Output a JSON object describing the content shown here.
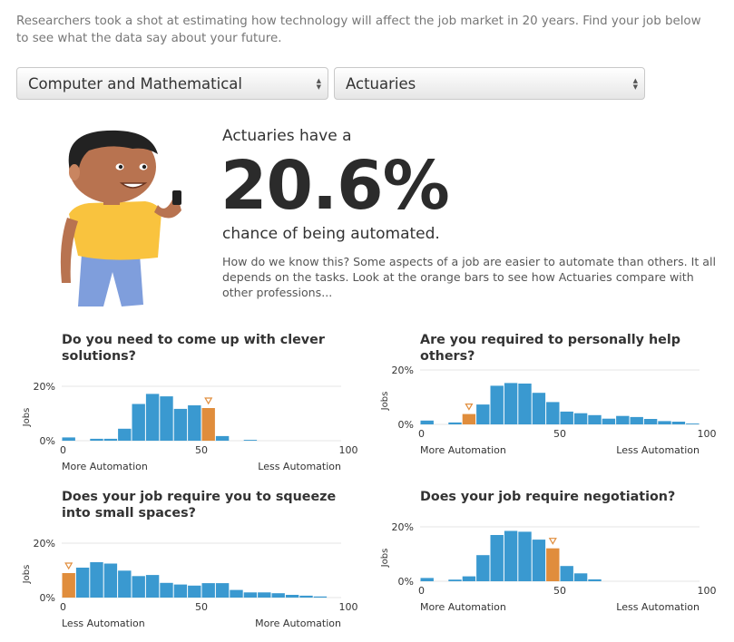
{
  "intro": "Researchers took a shot at estimating how technology will affect the job market in 20 years. Find your job below to see what the data say about your future.",
  "selects": {
    "category": "Computer and Mathematical",
    "job": "Actuaries"
  },
  "result": {
    "lead": "Actuaries have a",
    "probability": "20.6%",
    "tail": "chance of being automated.",
    "explanation": "How do we know this? Some aspects of a job are easier to automate than others. It all depends on the tasks. Look at the orange bars to see how Actuaries compare with other professions..."
  },
  "colors": {
    "bar": "#3a99d0",
    "highlight": "#e08d3c",
    "marker": "#e08d3c"
  },
  "charts": [
    {
      "question": "Do you need to come up with clever solutions?",
      "ylabel": "Jobs",
      "y_ticks": [
        "20%",
        "0%"
      ],
      "x_ticks": [
        "0",
        "50",
        "100"
      ],
      "left_label": "More Automation",
      "right_label": "Less Automation"
    },
    {
      "question": "Are you required to personally help others?",
      "ylabel": "Jobs",
      "y_ticks": [
        "20%",
        "0%"
      ],
      "x_ticks": [
        "0",
        "50",
        "100"
      ],
      "left_label": "More Automation",
      "right_label": "Less Automation"
    },
    {
      "question": "Does your job require you to squeeze into small spaces?",
      "ylabel": "Jobs",
      "y_ticks": [
        "20%",
        "0%"
      ],
      "x_ticks": [
        "0",
        "50",
        "100"
      ],
      "left_label": "Less Automation",
      "right_label": "More Automation"
    },
    {
      "question": "Does your job require negotiation?",
      "ylabel": "Jobs",
      "y_ticks": [
        "20%",
        "0%"
      ],
      "x_ticks": [
        "0",
        "50",
        "100"
      ],
      "left_label": "More Automation",
      "right_label": "Less Automation"
    }
  ],
  "chart_data": [
    {
      "type": "bar",
      "title": "Do you need to come up with clever solutions?",
      "ylabel": "Jobs",
      "xlim": [
        0,
        100
      ],
      "ylim": [
        0,
        20
      ],
      "bin_starts": [
        0,
        5,
        10,
        15,
        20,
        25,
        30,
        35,
        40,
        45,
        50,
        55,
        60,
        65,
        70,
        75,
        80,
        85,
        90,
        95
      ],
      "values": [
        1.2,
        0,
        0.7,
        0.7,
        4.4,
        13.5,
        17.2,
        16.3,
        11.7,
        13.0,
        12.0,
        1.7,
        0,
        0.3,
        0,
        0,
        0,
        0,
        0,
        0
      ],
      "highlight_bin": 50,
      "grid": true
    },
    {
      "type": "bar",
      "title": "Are you required to personally help others?",
      "ylabel": "Jobs",
      "xlim": [
        0,
        100
      ],
      "ylim": [
        0,
        20
      ],
      "bin_starts": [
        0,
        5,
        10,
        15,
        20,
        25,
        30,
        35,
        40,
        45,
        50,
        55,
        60,
        65,
        70,
        75,
        80,
        85,
        90,
        95
      ],
      "values": [
        1.4,
        0,
        0.7,
        3.8,
        7.3,
        14.2,
        15.2,
        15.0,
        11.6,
        8.2,
        4.7,
        4.1,
        3.4,
        2.1,
        3.1,
        2.7,
        2.0,
        1.2,
        1.0,
        0.3
      ],
      "highlight_bin": 15,
      "grid": true
    },
    {
      "type": "bar",
      "title": "Does your job require you to squeeze into small spaces?",
      "ylabel": "Jobs",
      "xlim": [
        0,
        100
      ],
      "ylim": [
        0,
        20
      ],
      "bin_starts": [
        0,
        5,
        10,
        15,
        20,
        25,
        30,
        35,
        40,
        45,
        50,
        55,
        60,
        65,
        70,
        75,
        80,
        85,
        90,
        95
      ],
      "values": [
        9.0,
        11.0,
        13.0,
        12.5,
        9.9,
        7.9,
        8.3,
        5.4,
        4.8,
        4.4,
        5.3,
        5.3,
        2.8,
        1.9,
        1.9,
        1.6,
        1.0,
        0.7,
        0.4,
        0
      ],
      "highlight_bin": 0,
      "grid": true
    },
    {
      "type": "bar",
      "title": "Does your job require negotiation?",
      "ylabel": "Jobs",
      "xlim": [
        0,
        100
      ],
      "ylim": [
        0,
        20
      ],
      "bin_starts": [
        0,
        5,
        10,
        15,
        20,
        25,
        30,
        35,
        40,
        45,
        50,
        55,
        60,
        65,
        70,
        75,
        80,
        85,
        90,
        95
      ],
      "values": [
        1.2,
        0,
        0.6,
        1.8,
        9.6,
        17.0,
        18.5,
        18.2,
        15.3,
        12.1,
        5.6,
        2.9,
        0.7,
        0,
        0,
        0,
        0,
        0,
        0,
        0
      ],
      "highlight_bin": 45,
      "grid": true
    }
  ]
}
